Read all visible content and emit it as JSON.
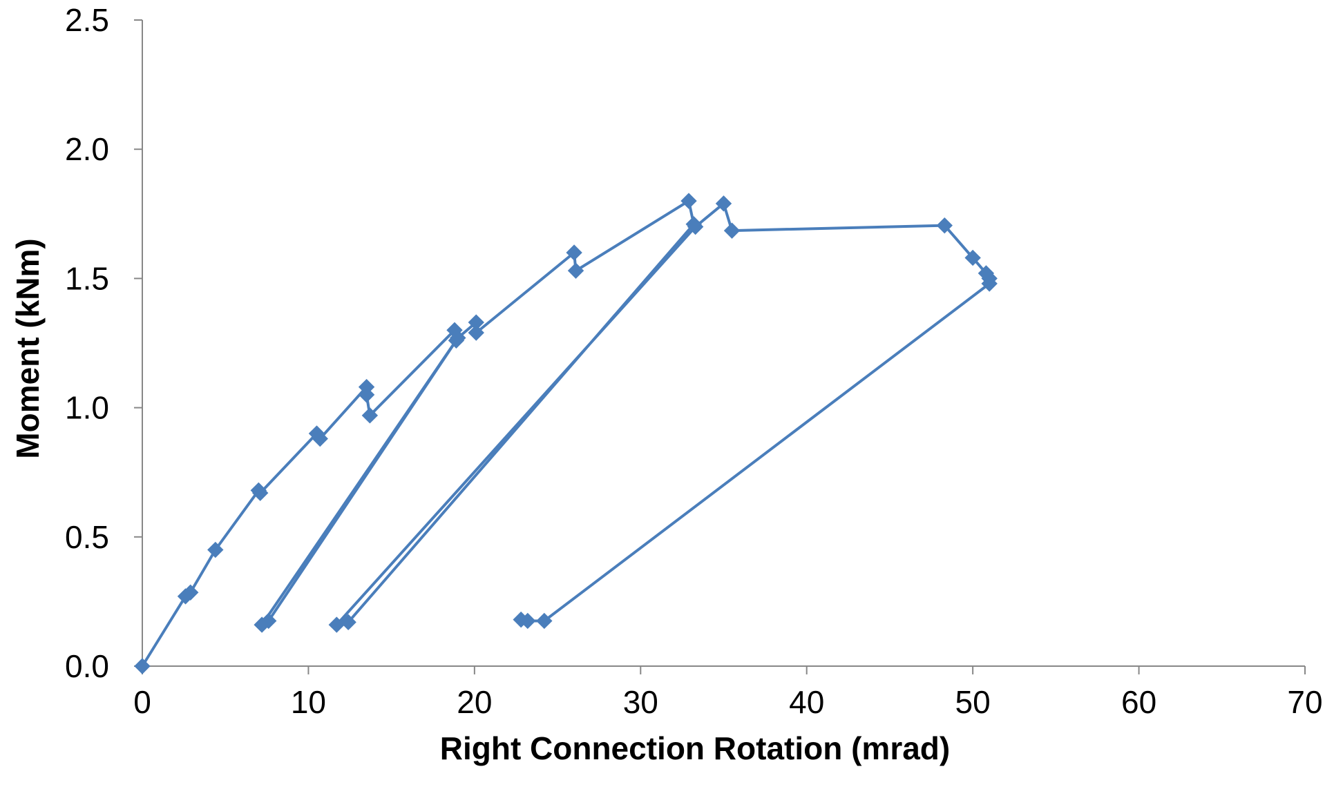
{
  "chart_data": {
    "type": "scatter",
    "title": "",
    "xlabel": "Right Connection Rotation  (mrad)",
    "ylabel": "Moment  (kNm)",
    "xlim": [
      0,
      70
    ],
    "ylim": [
      0,
      2.5
    ],
    "x_ticks": [
      "0",
      "10",
      "20",
      "30",
      "40",
      "50",
      "60",
      "70"
    ],
    "y_ticks": [
      "0.0",
      "0.5",
      "1.0",
      "1.5",
      "2.0",
      "2.5"
    ],
    "grid": false,
    "legend": "none",
    "color": "#4a7ebb",
    "marker": "diamond",
    "line": "straight lines connecting points in order",
    "series": [
      {
        "points": [
          [
            0,
            0
          ],
          [
            2.6,
            0.27
          ],
          [
            2.9,
            0.285
          ],
          [
            4.4,
            0.45
          ],
          [
            7.0,
            0.68
          ],
          [
            7.1,
            0.67
          ],
          [
            10.5,
            0.9
          ],
          [
            10.7,
            0.88
          ],
          [
            13.5,
            1.08
          ],
          [
            13.5,
            1.05
          ],
          [
            13.7,
            0.97
          ],
          [
            18.8,
            1.3
          ],
          [
            18.9,
            1.26
          ],
          [
            7.6,
            0.175
          ],
          [
            7.2,
            0.16
          ],
          [
            19.0,
            1.27
          ],
          [
            20.1,
            1.33
          ],
          [
            20.1,
            1.29
          ],
          [
            26.0,
            1.6
          ],
          [
            26.1,
            1.53
          ],
          [
            32.9,
            1.8
          ],
          [
            33.2,
            1.71
          ],
          [
            12.4,
            0.17
          ],
          [
            11.7,
            0.16
          ],
          [
            33.3,
            1.7
          ],
          [
            35.0,
            1.79
          ],
          [
            35.5,
            1.685
          ],
          [
            48.3,
            1.705
          ],
          [
            50.0,
            1.58
          ],
          [
            50.8,
            1.52
          ],
          [
            51.0,
            1.5
          ],
          [
            51.0,
            1.48
          ],
          [
            24.2,
            0.175
          ],
          [
            23.2,
            0.175
          ],
          [
            22.8,
            0.18
          ]
        ]
      }
    ]
  }
}
